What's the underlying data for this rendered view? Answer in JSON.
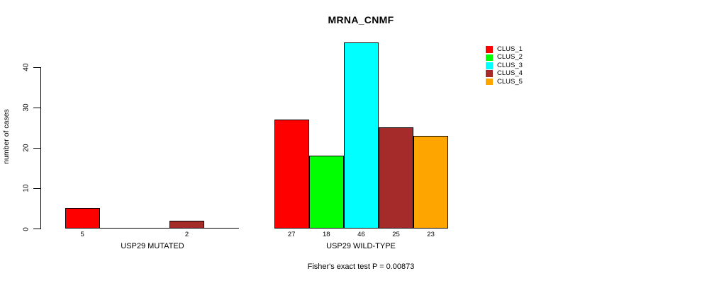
{
  "chart_data": {
    "type": "bar",
    "title": "MRNA_CNMF",
    "ylabel": "number of cases",
    "xlabel": "",
    "ylim": [
      0,
      46
    ],
    "y_ticks": [
      0,
      10,
      20,
      30,
      40
    ],
    "grid": false,
    "legend_position": "top-right",
    "categories": [
      "USP29 MUTATED",
      "USP29 WILD-TYPE"
    ],
    "series": [
      {
        "name": "CLUS_1",
        "color": "#ff0000",
        "values": [
          5,
          27
        ]
      },
      {
        "name": "CLUS_2",
        "color": "#00ff00",
        "values": [
          0,
          18
        ]
      },
      {
        "name": "CLUS_3",
        "color": "#00ffff",
        "values": [
          0,
          46
        ]
      },
      {
        "name": "CLUS_4",
        "color": "#a52a2a",
        "values": [
          2,
          25
        ]
      },
      {
        "name": "CLUS_5",
        "color": "#ffa500",
        "values": [
          0,
          23
        ]
      }
    ],
    "hide_zero_bar_labels": true,
    "axis_color": "#000000",
    "footnote": "Fisher's exact test P = 0.00873"
  }
}
